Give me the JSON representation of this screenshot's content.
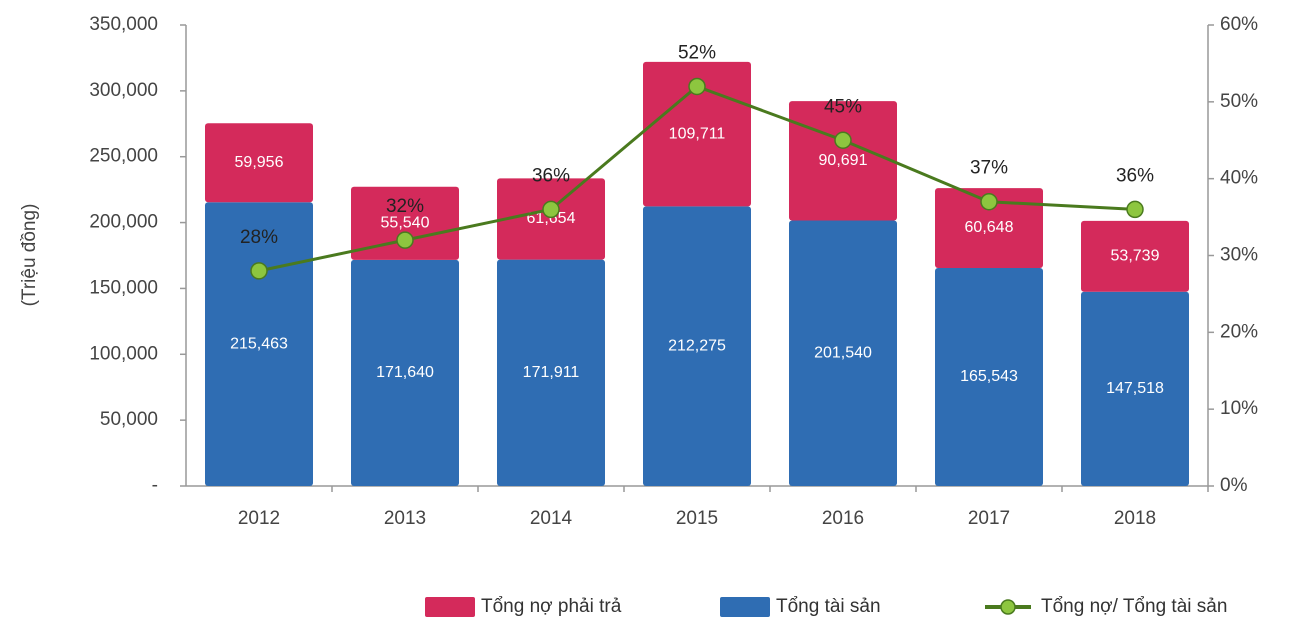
{
  "chart_data": {
    "type": "bar",
    "categories": [
      "2012",
      "2013",
      "2014",
      "2015",
      "2016",
      "2017",
      "2018"
    ],
    "y_label": "(Triệu đồng)",
    "series": [
      {
        "name": "Tổng tài sản",
        "color": "#2f6db3",
        "values": [
          215463,
          171640,
          171911,
          212275,
          201540,
          165543,
          147518
        ],
        "value_labels": [
          "215,463",
          "171,640",
          "171,911",
          "212,275",
          "201,540",
          "165,543",
          "147,518"
        ]
      },
      {
        "name": "Tổng nợ phải trả",
        "color": "#d42a5b",
        "values": [
          59956,
          55540,
          61654,
          109711,
          90691,
          60648,
          53739
        ],
        "value_labels": [
          "59,956",
          "55,540",
          "61,654",
          "109,711",
          "90,691",
          "60,648",
          "53,739"
        ]
      },
      {
        "name": "Tổng nợ/ Tổng tài sản",
        "type": "line",
        "axis": "y2",
        "color": "#4a7a1e",
        "marker_color": "#8dc63f",
        "values": [
          28,
          32,
          36,
          52,
          45,
          37,
          36
        ],
        "value_labels": [
          "28%",
          "32%",
          "36%",
          "52%",
          "45%",
          "37%",
          "36%"
        ]
      }
    ],
    "ylim": [
      0,
      350000
    ],
    "yticks": [
      {
        "value": 0,
        "label": "-"
      },
      {
        "value": 50000,
        "label": "50,000"
      },
      {
        "value": 100000,
        "label": "100,000"
      },
      {
        "value": 150000,
        "label": "150,000"
      },
      {
        "value": 200000,
        "label": "200,000"
      },
      {
        "value": 250000,
        "label": "250,000"
      },
      {
        "value": 300000,
        "label": "300,000"
      },
      {
        "value": 350000,
        "label": "350,000"
      }
    ],
    "y2lim": [
      0,
      60
    ],
    "y2ticks": [
      {
        "value": 0,
        "label": "0%"
      },
      {
        "value": 10,
        "label": "10%"
      },
      {
        "value": 20,
        "label": "20%"
      },
      {
        "value": 30,
        "label": "30%"
      },
      {
        "value": 40,
        "label": "40%"
      },
      {
        "value": 50,
        "label": "50%"
      },
      {
        "value": 60,
        "label": "60%"
      }
    ],
    "legend": "bottom",
    "grid": false
  }
}
